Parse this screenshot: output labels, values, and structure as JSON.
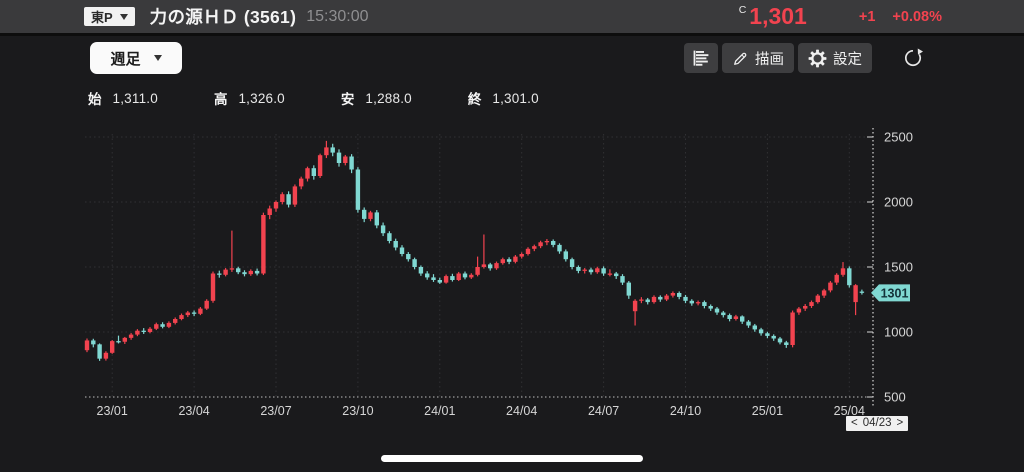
{
  "header": {
    "market_badge": "東P",
    "title": "力の源ＨＤ (3561)",
    "time": "15:30:00",
    "price_prefix": "C",
    "price": "1,301",
    "change": "+1",
    "change_pct": "+0.08%",
    "price_color": "#f2434f"
  },
  "toolbar": {
    "timeframe": "週足",
    "draw_label": "描画",
    "settings_label": "設定"
  },
  "ohlc": {
    "open_label": "始",
    "open": "1,311.0",
    "high_label": "高",
    "high": "1,326.0",
    "low_label": "安",
    "low": "1,288.0",
    "close_label": "終",
    "close": "1,301.0"
  },
  "footer": {
    "nav_prev": "<",
    "nav_date": "04/23",
    "nav_next": ">"
  },
  "chart_data": {
    "type": "candlestick",
    "title": "力の源ＨＤ (3561) 週足",
    "timeframe": "weekly",
    "grid": true,
    "x_tick_labels": [
      "23/01",
      "23/04",
      "23/07",
      "23/10",
      "24/01",
      "24/04",
      "24/07",
      "24/10",
      "25/01",
      "25/04"
    ],
    "x_tick_indices": [
      4,
      17,
      30,
      43,
      56,
      69,
      82,
      95,
      108,
      121
    ],
    "y_ticks": [
      500,
      1000,
      1500,
      2000,
      2500
    ],
    "ylim": [
      500,
      2500
    ],
    "up_color": "#f2434f",
    "down_color": "#80d8d2",
    "grid_color": "#303033",
    "axis_line_color": "#bcbcbc",
    "tick_label_color": "#d6d6d6",
    "last_price": 1301,
    "price_tag_label": "1301",
    "ohlc": [
      [
        860,
        950,
        845,
        935
      ],
      [
        935,
        948,
        882,
        905
      ],
      [
        905,
        912,
        778,
        795
      ],
      [
        795,
        852,
        780,
        840
      ],
      [
        840,
        938,
        832,
        930
      ],
      [
        930,
        972,
        912,
        925
      ],
      [
        925,
        962,
        908,
        955
      ],
      [
        955,
        992,
        940,
        980
      ],
      [
        980,
        1022,
        968,
        1010
      ],
      [
        1010,
        1030,
        985,
        1000
      ],
      [
        1000,
        1038,
        990,
        1025
      ],
      [
        1025,
        1072,
        1015,
        1060
      ],
      [
        1060,
        1075,
        1028,
        1040
      ],
      [
        1040,
        1082,
        1030,
        1070
      ],
      [
        1070,
        1112,
        1058,
        1100
      ],
      [
        1100,
        1142,
        1090,
        1130
      ],
      [
        1130,
        1162,
        1115,
        1150
      ],
      [
        1150,
        1165,
        1122,
        1140
      ],
      [
        1140,
        1192,
        1130,
        1180
      ],
      [
        1180,
        1252,
        1170,
        1240
      ],
      [
        1240,
        1465,
        1225,
        1450
      ],
      [
        1450,
        1472,
        1418,
        1440
      ],
      [
        1440,
        1492,
        1428,
        1480
      ],
      [
        1480,
        1780,
        1462,
        1490
      ],
      [
        1490,
        1502,
        1445,
        1460
      ],
      [
        1460,
        1475,
        1428,
        1445
      ],
      [
        1445,
        1482,
        1432,
        1470
      ],
      [
        1470,
        1488,
        1435,
        1450
      ],
      [
        1450,
        1918,
        1438,
        1900
      ],
      [
        1900,
        1972,
        1868,
        1950
      ],
      [
        1950,
        2012,
        1925,
        2000
      ],
      [
        2000,
        2075,
        1982,
        2060
      ],
      [
        2060,
        2082,
        1958,
        1980
      ],
      [
        1980,
        2135,
        1962,
        2120
      ],
      [
        2120,
        2195,
        2098,
        2180
      ],
      [
        2180,
        2272,
        2158,
        2260
      ],
      [
        2260,
        2282,
        2172,
        2200
      ],
      [
        2200,
        2372,
        2185,
        2360
      ],
      [
        2360,
        2470,
        2338,
        2420
      ],
      [
        2420,
        2448,
        2352,
        2380
      ],
      [
        2380,
        2405,
        2272,
        2300
      ],
      [
        2300,
        2362,
        2282,
        2350
      ],
      [
        2350,
        2368,
        2222,
        2250
      ],
      [
        2250,
        2268,
        1918,
        1940
      ],
      [
        1940,
        1958,
        1845,
        1870
      ],
      [
        1870,
        1932,
        1852,
        1920
      ],
      [
        1920,
        1938,
        1798,
        1820
      ],
      [
        1820,
        1842,
        1738,
        1760
      ],
      [
        1760,
        1775,
        1682,
        1700
      ],
      [
        1700,
        1718,
        1628,
        1650
      ],
      [
        1650,
        1668,
        1582,
        1600
      ],
      [
        1600,
        1615,
        1542,
        1560
      ],
      [
        1560,
        1572,
        1482,
        1500
      ],
      [
        1500,
        1512,
        1432,
        1450
      ],
      [
        1450,
        1468,
        1402,
        1420
      ],
      [
        1420,
        1445,
        1385,
        1400
      ],
      [
        1400,
        1418,
        1370,
        1380
      ],
      [
        1380,
        1442,
        1372,
        1430
      ],
      [
        1430,
        1448,
        1388,
        1400
      ],
      [
        1400,
        1462,
        1392,
        1450
      ],
      [
        1450,
        1465,
        1405,
        1420
      ],
      [
        1420,
        1452,
        1408,
        1440
      ],
      [
        1440,
        1580,
        1428,
        1500
      ],
      [
        1500,
        1750,
        1488,
        1520
      ],
      [
        1520,
        1532,
        1472,
        1490
      ],
      [
        1490,
        1542,
        1478,
        1530
      ],
      [
        1530,
        1572,
        1518,
        1560
      ],
      [
        1560,
        1575,
        1522,
        1540
      ],
      [
        1540,
        1592,
        1528,
        1580
      ],
      [
        1580,
        1612,
        1565,
        1600
      ],
      [
        1600,
        1652,
        1588,
        1640
      ],
      [
        1640,
        1672,
        1622,
        1660
      ],
      [
        1660,
        1702,
        1645,
        1690
      ],
      [
        1690,
        1715,
        1668,
        1700
      ],
      [
        1700,
        1712,
        1652,
        1670
      ],
      [
        1670,
        1682,
        1602,
        1620
      ],
      [
        1620,
        1635,
        1542,
        1560
      ],
      [
        1560,
        1572,
        1482,
        1500
      ],
      [
        1500,
        1512,
        1452,
        1470
      ],
      [
        1470,
        1492,
        1450,
        1480
      ],
      [
        1480,
        1495,
        1442,
        1460
      ],
      [
        1460,
        1502,
        1448,
        1490
      ],
      [
        1490,
        1505,
        1432,
        1450
      ],
      [
        1450,
        1482,
        1428,
        1450
      ],
      [
        1450,
        1462,
        1408,
        1430
      ],
      [
        1430,
        1445,
        1362,
        1380
      ],
      [
        1380,
        1392,
        1255,
        1280
      ],
      [
        1160,
        1252,
        1050,
        1240
      ],
      [
        1240,
        1268,
        1222,
        1250
      ],
      [
        1250,
        1262,
        1212,
        1230
      ],
      [
        1230,
        1282,
        1218,
        1270
      ],
      [
        1270,
        1282,
        1232,
        1250
      ],
      [
        1250,
        1292,
        1238,
        1280
      ],
      [
        1280,
        1312,
        1265,
        1300
      ],
      [
        1300,
        1312,
        1252,
        1270
      ],
      [
        1270,
        1285,
        1222,
        1240
      ],
      [
        1240,
        1252,
        1202,
        1220
      ],
      [
        1220,
        1242,
        1205,
        1230
      ],
      [
        1230,
        1242,
        1182,
        1200
      ],
      [
        1200,
        1212,
        1162,
        1180
      ],
      [
        1180,
        1192,
        1132,
        1150
      ],
      [
        1150,
        1162,
        1112,
        1130
      ],
      [
        1130,
        1142,
        1082,
        1100
      ],
      [
        1100,
        1132,
        1088,
        1120
      ],
      [
        1120,
        1128,
        1062,
        1080
      ],
      [
        1080,
        1092,
        1032,
        1050
      ],
      [
        1050,
        1062,
        1002,
        1020
      ],
      [
        1020,
        1032,
        972,
        990
      ],
      [
        990,
        1002,
        952,
        970
      ],
      [
        970,
        982,
        932,
        950
      ],
      [
        950,
        962,
        905,
        920
      ],
      [
        920,
        932,
        878,
        900
      ],
      [
        900,
        1165,
        882,
        1150
      ],
      [
        1150,
        1192,
        1132,
        1180
      ],
      [
        1180,
        1215,
        1162,
        1200
      ],
      [
        1200,
        1242,
        1185,
        1230
      ],
      [
        1230,
        1292,
        1218,
        1280
      ],
      [
        1280,
        1332,
        1262,
        1320
      ],
      [
        1320,
        1392,
        1305,
        1380
      ],
      [
        1380,
        1452,
        1362,
        1440
      ],
      [
        1440,
        1538,
        1425,
        1490
      ],
      [
        1490,
        1505,
        1342,
        1360
      ],
      [
        1230,
        1368,
        1130,
        1360
      ],
      [
        1311,
        1326,
        1288,
        1301
      ]
    ]
  }
}
